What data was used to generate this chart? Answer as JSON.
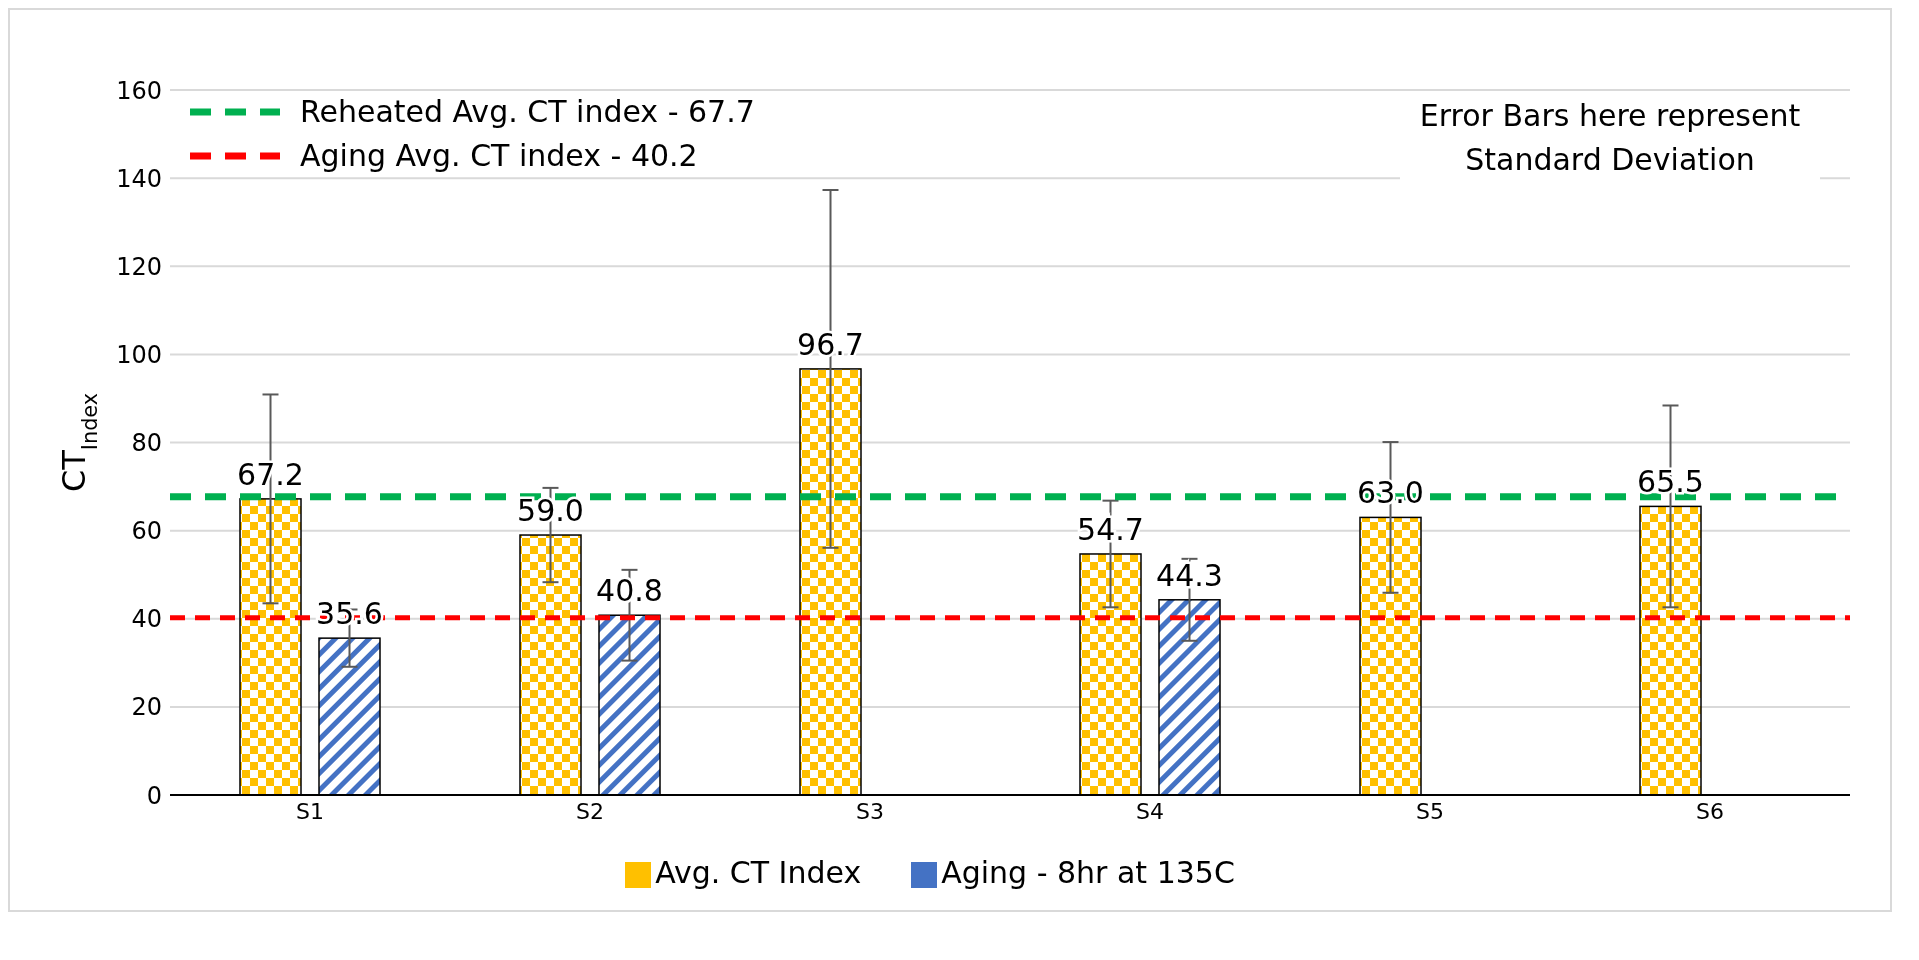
{
  "chart_data": {
    "type": "bar",
    "ylabel": "CT$_{Index}$",
    "categories": [
      "S1",
      "S2",
      "S3",
      "S4",
      "S5",
      "S6"
    ],
    "series": [
      {
        "name": "Avg. CT Index",
        "color": "#ffc000",
        "values": [
          67.2,
          59.0,
          96.7,
          54.7,
          63.0,
          65.5
        ],
        "errors": [
          23.7,
          10.7,
          40.6,
          12.1,
          17.1,
          22.9
        ],
        "value_labels": [
          "67.2",
          "59.0",
          "96.7",
          "54.7",
          "63.0",
          "65.5"
        ]
      },
      {
        "name": "Aging - 8hr at 135C",
        "color": "#4472c4",
        "values": [
          35.6,
          40.8,
          null,
          44.3,
          null,
          null
        ],
        "errors": [
          6.5,
          10.3,
          null,
          9.3,
          null,
          null
        ],
        "value_labels": [
          "35.6",
          "40.8",
          null,
          "44.3",
          null,
          null
        ]
      }
    ],
    "ylim": [
      0,
      160
    ],
    "yticks": [
      0,
      20,
      40,
      60,
      80,
      100,
      120,
      140,
      160
    ],
    "grid": "y",
    "legend": "bottom",
    "ref_lines": [
      {
        "axis": "y",
        "value": 67.7,
        "label": "Reheated Avg. CT index - 67.7",
        "color": "#00b050",
        "line_style": "dashed"
      },
      {
        "axis": "y",
        "value": 40.2,
        "label": "Aging Avg. CT index - 40.2",
        "color": "#ff0000",
        "line_style": "dashed"
      }
    ],
    "annotations": [
      "Error Bars here represent Standard Deviation"
    ]
  }
}
